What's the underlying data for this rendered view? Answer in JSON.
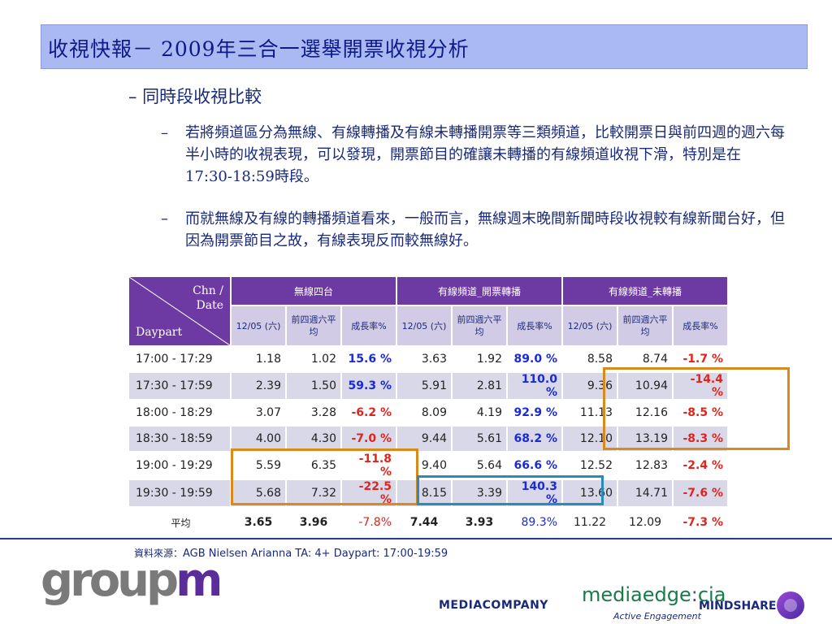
{
  "title": "收視快報－ 2009年三合一選舉開票收視分析",
  "subheading": "– 同時段收視比較",
  "bullets": [
    "若將頻道區分為無線、有線轉播及有線未轉播開票等三類頻道，比較開票日與前四週的週六每半小時的收視表現，可以發現，開票節目的確讓未轉播的有線頻道收視下滑，特別是在17:30-18:59時段。",
    "而就無線及有線的轉播頻道看來，一般而言，無線週末晚間新聞時段收視較有線新聞台好，但因為開票節目之故，有線表現反而較無線好。"
  ],
  "bullet_dash": "–",
  "table": {
    "corner_top": "Chn /",
    "corner_top2": "Date",
    "corner_bottom": "Daypart",
    "groups": [
      "無線四台",
      "有線頻道_開票轉播",
      "有線頻道_未轉播"
    ],
    "sub_headers": [
      "12/05 (六)",
      "前四週六平均",
      "成長率%"
    ],
    "rows": [
      {
        "daypart": "17:00 - 17:29",
        "values": [
          "1.18",
          "1.02",
          "15.6 %",
          "3.63",
          "1.92",
          "89.0 %",
          "8.58",
          "8.74",
          "-1.7 %"
        ]
      },
      {
        "daypart": "17:30 - 17:59",
        "values": [
          "2.39",
          "1.50",
          "59.3 %",
          "5.91",
          "2.81",
          "110.0 %",
          "9.36",
          "10.94",
          "-14.4 %"
        ]
      },
      {
        "daypart": "18:00 - 18:29",
        "values": [
          "3.07",
          "3.28",
          "-6.2 %",
          "8.09",
          "4.19",
          "92.9 %",
          "11.13",
          "12.16",
          "-8.5 %"
        ]
      },
      {
        "daypart": "18:30 - 18:59",
        "values": [
          "4.00",
          "4.30",
          "-7.0 %",
          "9.44",
          "5.61",
          "68.2 %",
          "12.10",
          "13.19",
          "-8.3 %"
        ]
      },
      {
        "daypart": "19:00 - 19:29",
        "values": [
          "5.59",
          "6.35",
          "-11.8 %",
          "9.40",
          "5.64",
          "66.6 %",
          "12.52",
          "12.83",
          "-2.4 %"
        ]
      },
      {
        "daypart": "19:30 - 19:59",
        "values": [
          "5.68",
          "7.32",
          "-22.5 %",
          "8.15",
          "3.39",
          "140.3 %",
          "13.60",
          "14.71",
          "-7.6 %"
        ]
      }
    ],
    "average": {
      "daypart": "平均",
      "values": [
        "3.65",
        "3.96",
        "-7.8%",
        "7.44",
        "3.93",
        "89.3%",
        "11.22",
        "12.09",
        "-7.3 %"
      ]
    }
  },
  "source": {
    "label": "資料來源：",
    "text": "AGB Nielsen Arianna TA: 4+ Daypart: 17:00-19:59"
  },
  "logos": {
    "groupm_a": "group",
    "groupm_b": "m",
    "mediacompany": "MEDIACOMPANY",
    "mec_a": "mediaedge",
    "mec_colon": ":",
    "mec_b": "cia",
    "mec_sub": "Active Engagement",
    "mindshare": "MINDSHARE"
  },
  "colors": {
    "title_bg": "#aab9f2",
    "header_purple": "#6d3aa3",
    "positive": "#1a2ad6",
    "negative": "#e0241b",
    "highlight_orange": "#d88b1c",
    "highlight_teal": "#2a8ab8"
  }
}
